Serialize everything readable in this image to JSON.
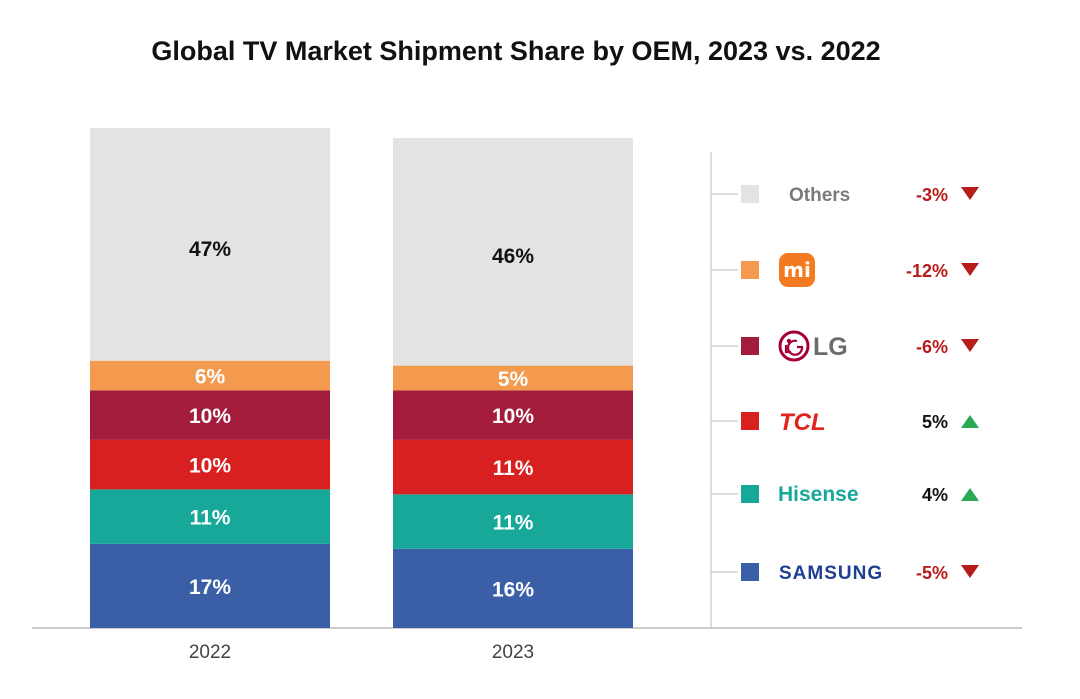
{
  "chart_data": {
    "type": "bar",
    "stacked": true,
    "percent_stacked": true,
    "title": "Global TV Market Shipment Share by OEM, 2023 vs. 2022",
    "categories": [
      "2022",
      "2023"
    ],
    "series": [
      {
        "name": "SAMSUNG",
        "color": "#3a5fa6",
        "values": [
          17,
          16
        ],
        "labels": [
          "17%",
          "16%"
        ]
      },
      {
        "name": "Hisense",
        "color": "#17a89a",
        "values": [
          11,
          11
        ],
        "labels": [
          "11%",
          "11%"
        ]
      },
      {
        "name": "TCL",
        "color": "#d7201f",
        "values": [
          10,
          11
        ],
        "labels": [
          "10%",
          "11%"
        ]
      },
      {
        "name": "LG",
        "color": "#a31c3c",
        "values": [
          10,
          10
        ],
        "labels": [
          "10%",
          "10%"
        ]
      },
      {
        "name": "MI",
        "color": "#f39a4e",
        "values": [
          6,
          5
        ],
        "labels": [
          "6%",
          "5%"
        ]
      },
      {
        "name": "Others",
        "color": "#e3e3e3",
        "values": [
          47,
          46
        ],
        "labels": [
          "47%",
          "46%"
        ]
      }
    ],
    "legend": {
      "placement": "right",
      "items": [
        {
          "name": "Others",
          "change": "-3%",
          "direction": "down",
          "logo": "text"
        },
        {
          "name": "mi",
          "change": "-12%",
          "direction": "down",
          "logo": "xiaomi-logo"
        },
        {
          "name": "LG",
          "change": "-6%",
          "direction": "down",
          "logo": "lg-logo"
        },
        {
          "name": "TCL",
          "change": "5%",
          "direction": "up",
          "logo": "tcl-logo"
        },
        {
          "name": "Hisense",
          "change": "4%",
          "direction": "up",
          "logo": "hisense-logo"
        },
        {
          "name": "SAMSUNG",
          "change": "-5%",
          "direction": "down",
          "logo": "samsung-logo"
        }
      ]
    },
    "colors": {
      "down": "#b71c1c",
      "up": "#2aa853",
      "baseline": "#999999"
    },
    "grid": false,
    "ylim": [
      0,
      100
    ]
  }
}
